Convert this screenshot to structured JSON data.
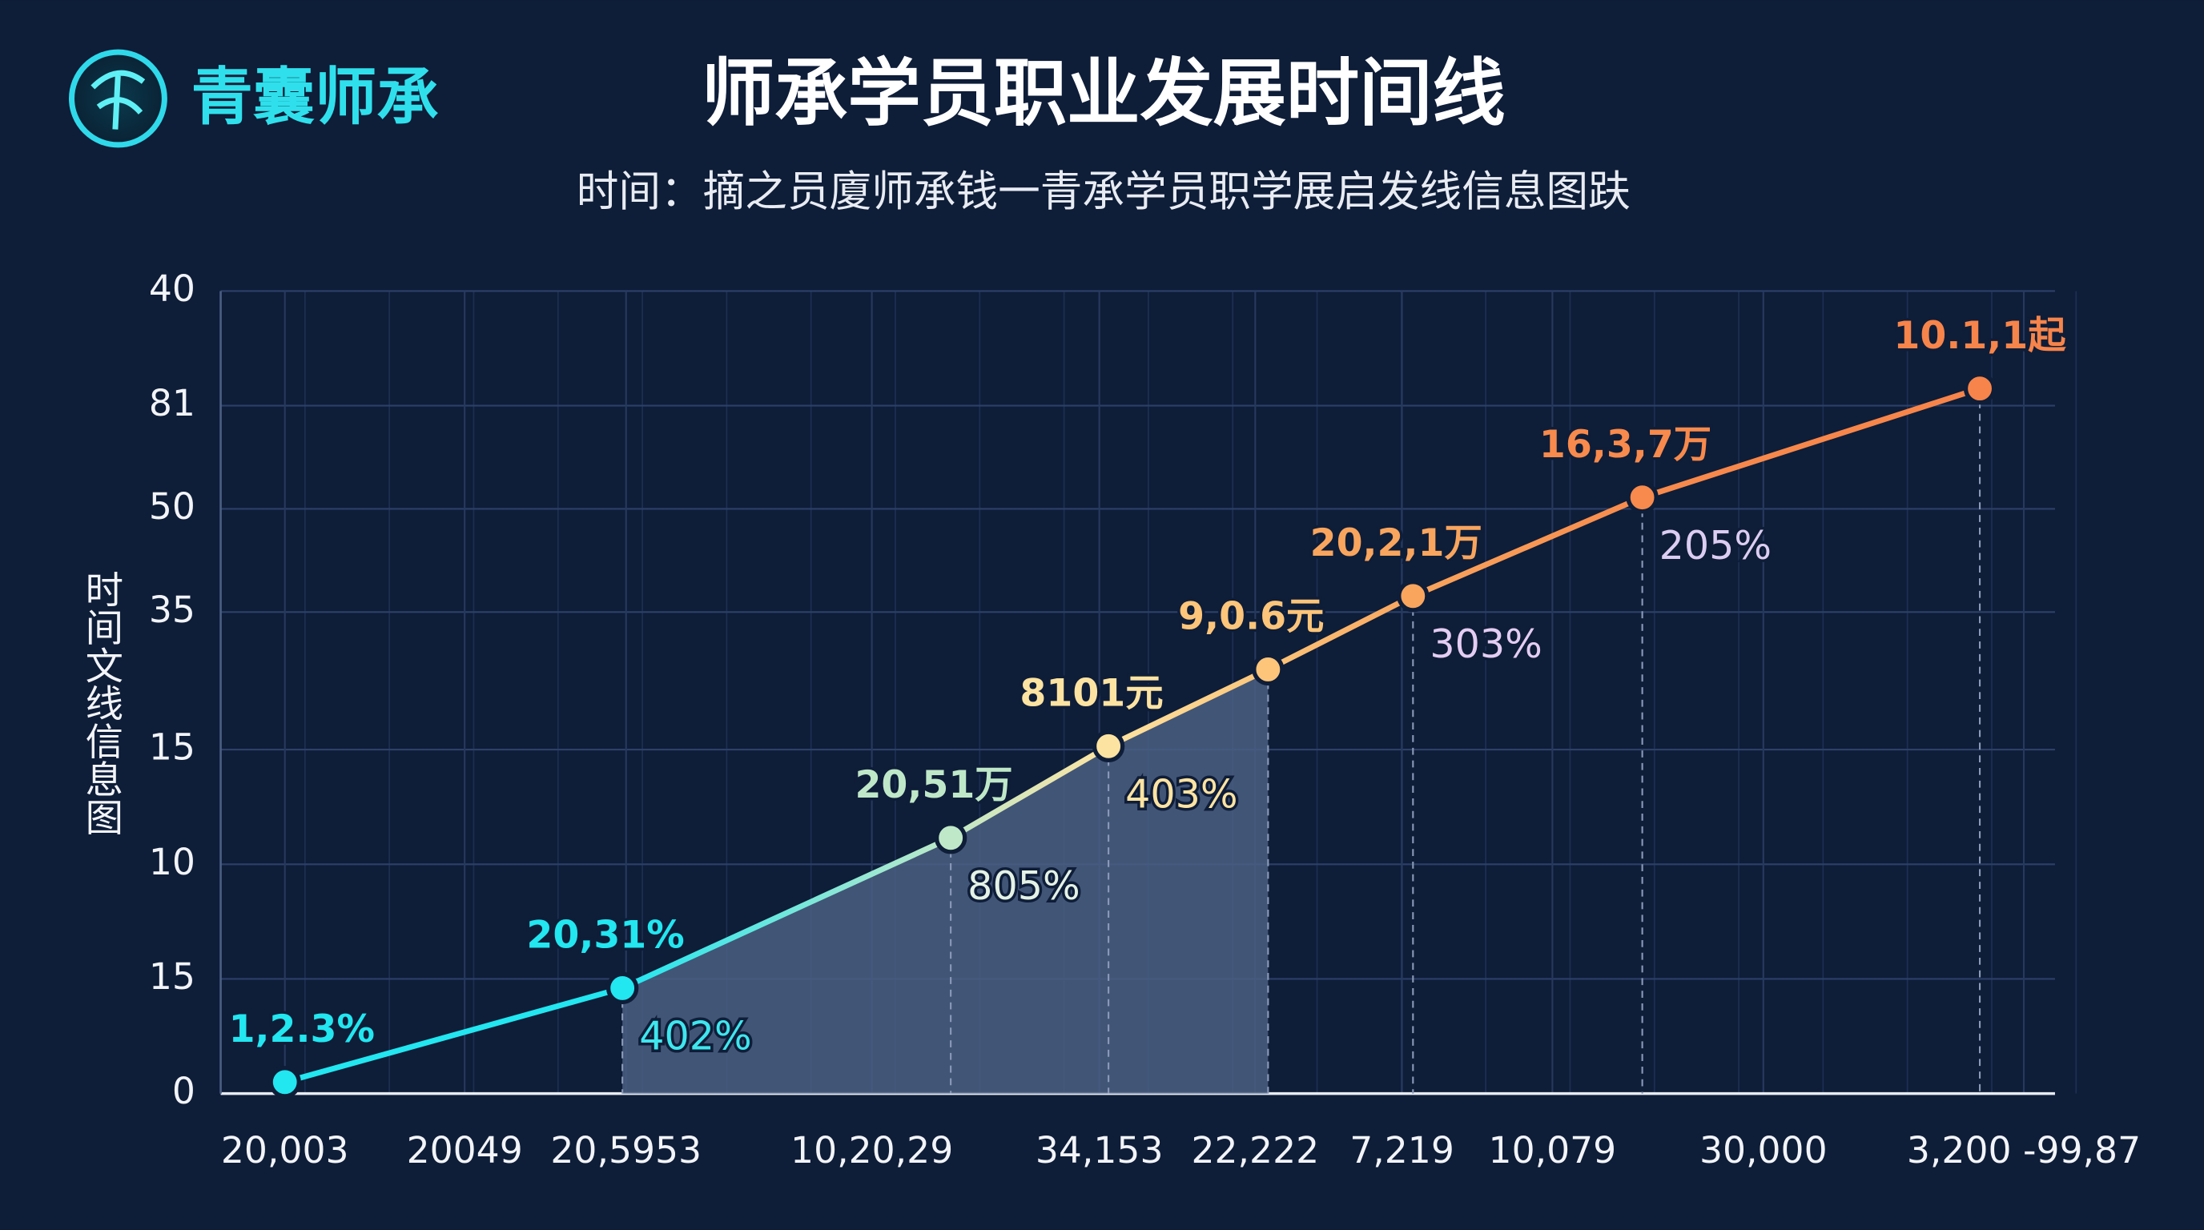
{
  "logo": "青囊师承",
  "chart_data": {
    "type": "line",
    "title": "师承学员职业发展时间线",
    "subtitle": "时间：摘之员廈师承钱一青承学员职学展启发线信息图趺",
    "ylabel": "时间文线信息图",
    "xlim": [
      0,
      100
    ],
    "xticks": [
      {
        "value": 3.5,
        "label": "20,003"
      },
      {
        "value": 13.3,
        "label": "20049"
      },
      {
        "value": 22.1,
        "label": "20,5953"
      },
      {
        "value": 35.5,
        "label": "10,20,29"
      },
      {
        "value": 47.9,
        "label": "34,153"
      },
      {
        "value": 56.4,
        "label": "22,222"
      },
      {
        "value": 64.4,
        "label": "7,219"
      },
      {
        "value": 72.6,
        "label": "10,079"
      },
      {
        "value": 84.1,
        "label": "30,000"
      },
      {
        "value": 98.3,
        "label": "3,200 -99,87"
      }
    ],
    "ylim": [
      0,
      7
    ],
    "yticks": [
      0,
      {
        "value": 1,
        "label": "15"
      },
      {
        "value": 2,
        "label": "10"
      },
      {
        "value": 3,
        "label": "15"
      },
      {
        "value": 4.2,
        "label": "35"
      },
      {
        "value": 5.1,
        "label": "50"
      },
      {
        "value": 6,
        "label": "81"
      },
      {
        "value": 7,
        "label": "40"
      }
    ],
    "grid": true,
    "series": [
      {
        "x": [
          3.5,
          21.9,
          39.8,
          48.4,
          57.1,
          65.0,
          77.5,
          95.9
        ],
        "values": [
          0.1,
          0.92,
          2.23,
          3.03,
          3.7,
          4.34,
          5.2,
          6.15
        ],
        "colors": [
          "#22e6f0",
          "#22e6f0",
          "#bfe8c8",
          "#fde3a2",
          "#fcc57a",
          "#f9a55e",
          "#f78a4c",
          "#f7844a"
        ],
        "point_labels": [
          "1,2.3%",
          "20,31%",
          "20,51万",
          "8101元",
          "9,0.6元",
          "20,2,1万",
          "16,3,7万",
          "10.1,1起"
        ],
        "point_notes": [
          null,
          "402%",
          "805%",
          "403%",
          null,
          "303%",
          "205%",
          null
        ],
        "note_colors": [
          null,
          "#3fe6ee",
          "#e4f2e6",
          "#fde3a2",
          null,
          "#e4cdf2",
          "#dccdf2",
          null
        ]
      }
    ],
    "shaded_range": [
      21.9,
      57.1
    ],
    "shade_color": "#4a5f82",
    "background": "#0e1d38"
  }
}
